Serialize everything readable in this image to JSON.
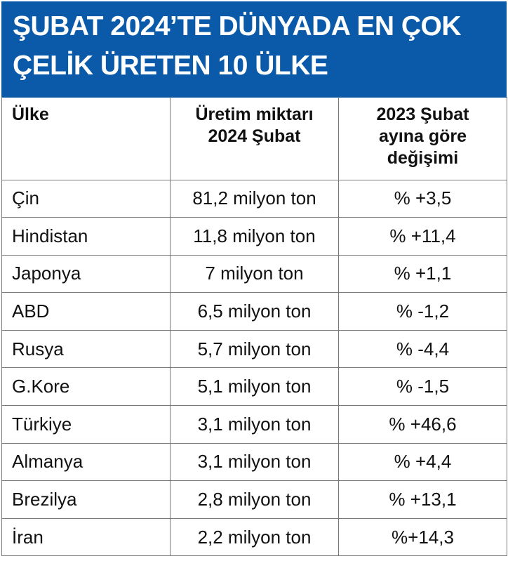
{
  "title": {
    "line1": "ŞUBAT 2024’TE DÜNYADA EN ÇOK",
    "line2": "ÇELİK ÜRETEN 10 ÜLKE"
  },
  "headers": {
    "country": "Ülke",
    "production_line1": "Üretim miktarı",
    "production_line2": "2024 Şubat",
    "change_line1": "2023 Şubat",
    "change_line2": "ayına göre",
    "change_line3": "değişimi"
  },
  "rows": [
    {
      "country": "Çin",
      "production": "81,2 milyon ton",
      "change": "% +3,5"
    },
    {
      "country": "Hindistan",
      "production": "11,8 milyon ton",
      "change": "% +11,4"
    },
    {
      "country": "Japonya",
      "production": "7 milyon ton",
      "change": "% +1,1"
    },
    {
      "country": "ABD",
      "production": "6,5 milyon ton",
      "change": "% -1,2"
    },
    {
      "country": "Rusya",
      "production": "5,7 milyon ton",
      "change": "% -4,4"
    },
    {
      "country": "G.Kore",
      "production": "5,1 milyon ton",
      "change": "% -1,5"
    },
    {
      "country": "Türkiye",
      "production": "3,1 milyon ton",
      "change": "% +46,6"
    },
    {
      "country": "Almanya",
      "production": "3,1 milyon ton",
      "change": "% +4,4"
    },
    {
      "country": "Brezilya",
      "production": "2,8 milyon ton",
      "change": "% +13,1"
    },
    {
      "country": "İran",
      "production": "2,2 milyon ton",
      "change": "%+14,3"
    }
  ],
  "colors": {
    "banner_background": "#0b5aa9",
    "banner_text": "#ffffff",
    "grid_line": "#7a7a7a",
    "body_text": "#111111"
  }
}
